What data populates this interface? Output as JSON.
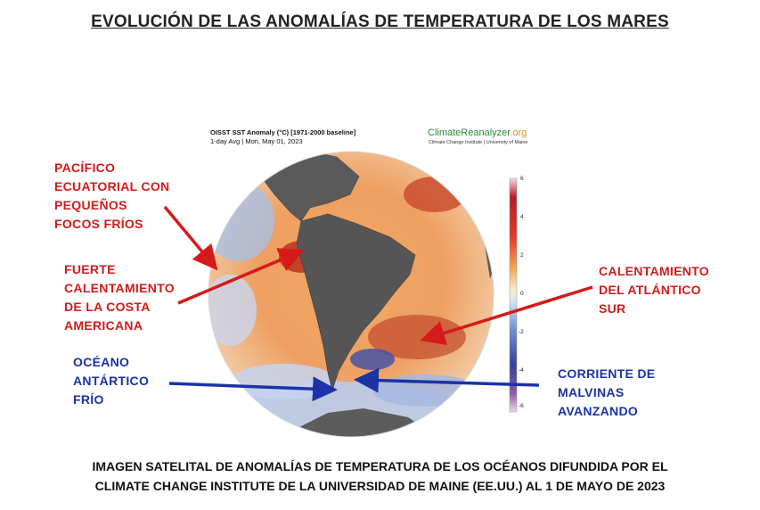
{
  "page": {
    "title": "EVOLUCIÓN DE LAS ANOMALÍAS DE TEMPERATURA DE LOS MARES",
    "caption_line1": "IMAGEN SATELITAL DE ANOMALÍAS DE TEMPERATURA DE LOS OCÉANOS DIFUNDIDA POR EL",
    "caption_line2": "CLIMATE CHANGE INSTITUTE DE LA UNIVERSIDAD DE MAINE (EE.UU.) AL 1 DE MAYO DE 2023"
  },
  "map": {
    "title_line1": "OISST SST Anomaly (°C) [1971-2000 baseline]",
    "title_line2": "1-day Avg | Mon, May 01, 2023",
    "logo_main": "ClimateReanalyzer",
    "logo_suffix": ".org",
    "logo_sub": "Climate Change Institute | University of Maine",
    "colorbar_ticks": [
      "6",
      "4",
      "2",
      "0",
      "-2",
      "-4",
      "-6"
    ],
    "colors": {
      "warm": "#e8883a",
      "hot": "#b3261e",
      "cold": "#6f8fd0",
      "land": "#555555",
      "annotation_red": "#d51a1a",
      "annotation_blue": "#1b33a6"
    }
  },
  "annotations": {
    "pacifico": [
      "PACÍFICO",
      "ECUATORIAL CON",
      "PEQUEÑOS",
      "FOCOS FRÍOS"
    ],
    "fuerte": [
      "FUERTE",
      "CALENTAMIENTO",
      "DE LA COSTA",
      "AMERICANA"
    ],
    "oceano": [
      "OCÉANO",
      "ANTÁRTICO",
      "FRÍO"
    ],
    "calentamiento": [
      "CALENTAMIENTO",
      "DEL ATLÁNTICO",
      "SUR"
    ],
    "corriente": [
      "CORRIENTE DE",
      "MALVINAS",
      "AVANZANDO"
    ]
  }
}
